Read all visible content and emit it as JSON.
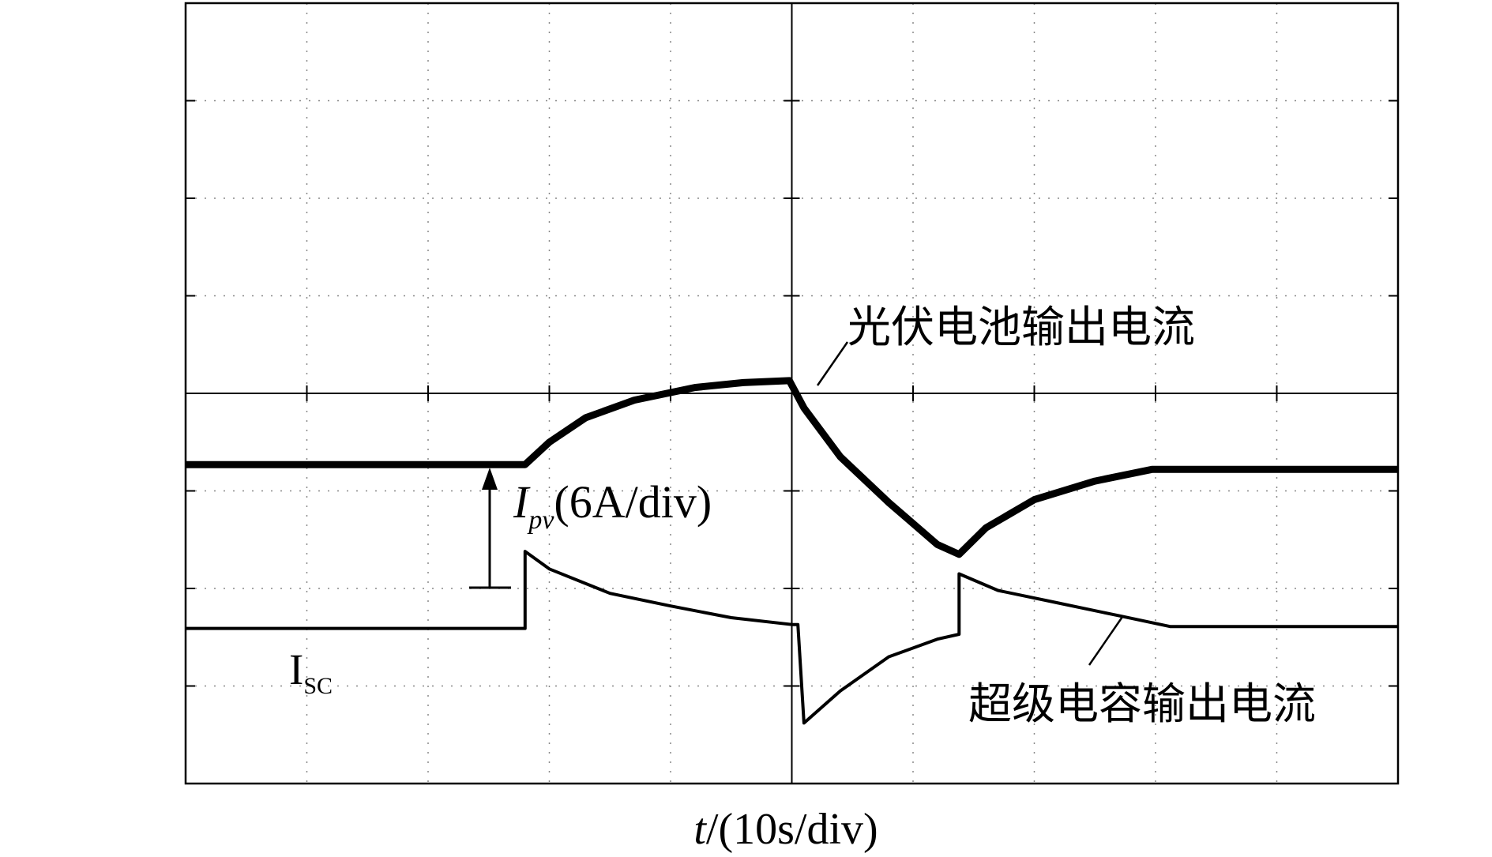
{
  "chart_data": {
    "type": "line",
    "x_label": {
      "var": "t",
      "unit": "/(10s/div)"
    },
    "annotations": {
      "pv_scale": {
        "main": "I",
        "sub": "pv",
        "unit": "(6A/div)"
      },
      "sc_label": {
        "main": "I",
        "sub": "SC"
      }
    },
    "xlim": [
      0,
      10
    ],
    "ylim": [
      0,
      8
    ],
    "xticks": [
      0,
      1,
      2,
      3,
      4,
      5,
      6,
      7,
      8,
      9,
      10
    ],
    "yticks": [
      0,
      1,
      2,
      3,
      4,
      5,
      6,
      7,
      8
    ],
    "grid": true,
    "series": [
      {
        "name": "光伏电池输出电流",
        "color": "#000000",
        "width": "thick",
        "x": [
          0,
          2.8,
          3.0,
          3.3,
          3.7,
          4.2,
          4.6,
          4.98,
          5.1,
          5.4,
          5.8,
          6.2,
          6.38,
          6.6,
          7.0,
          7.5,
          7.97,
          10
        ],
        "values": [
          3.27,
          3.27,
          3.5,
          3.75,
          3.93,
          4.06,
          4.11,
          4.13,
          3.85,
          3.35,
          2.88,
          2.45,
          2.35,
          2.62,
          2.91,
          3.1,
          3.22,
          3.22
        ]
      },
      {
        "name": "超级电容输出电流",
        "color": "#000000",
        "width": "thin",
        "x": [
          0,
          2.8,
          2.8,
          3.0,
          3.5,
          4.0,
          4.5,
          5.0,
          5.05,
          5.1,
          5.4,
          5.8,
          6.2,
          6.38,
          6.38,
          6.7,
          7.2,
          7.7,
          8.12,
          10
        ],
        "values": [
          1.59,
          1.59,
          2.38,
          2.2,
          1.95,
          1.82,
          1.7,
          1.63,
          1.63,
          0.62,
          0.95,
          1.3,
          1.48,
          1.53,
          2.15,
          1.98,
          1.85,
          1.72,
          1.61,
          1.61
        ]
      }
    ]
  }
}
